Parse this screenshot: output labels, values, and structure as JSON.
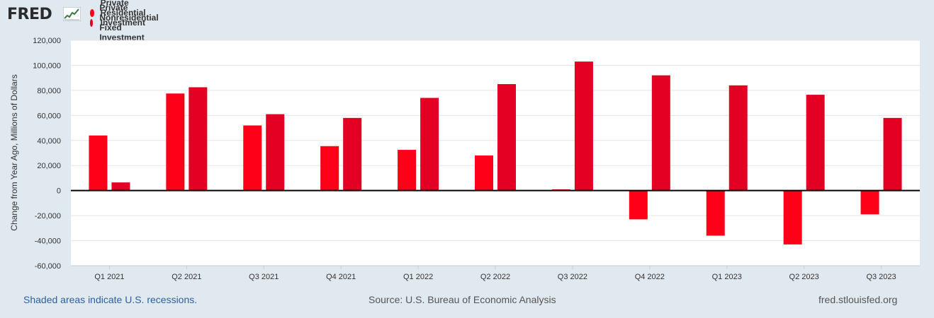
{
  "header": {
    "logo_text": "FRED",
    "logo_icon": "trend-line-icon",
    "legend": [
      {
        "label": "Private Residential Investment",
        "color": "#ff0019"
      },
      {
        "label": "Private Nonresidential Fixed Investment",
        "color": "#e30022"
      }
    ]
  },
  "footer": {
    "recessions_note": "Shaded areas indicate U.S. recessions.",
    "source": "Source: U.S. Bureau of Economic Analysis",
    "site": "fred.stlouisfed.org"
  },
  "colors": {
    "background": "#e1e9f0",
    "plot_background": "#ffffff",
    "gridline": "#e6e6e6",
    "zero_line": "#000000",
    "series_residential": "#ff0019",
    "series_nonresidential": "#e30022"
  },
  "chart_data": {
    "type": "bar",
    "title": "",
    "xlabel": "",
    "ylabel": "Change from Year Ago, Millions of Dollars",
    "ylim": [
      -60000,
      120000
    ],
    "yticks": [
      -60000,
      -40000,
      -20000,
      0,
      20000,
      40000,
      60000,
      80000,
      100000,
      120000
    ],
    "ytick_labels": [
      "-60,000",
      "-40,000",
      "-20,000",
      "0",
      "20,000",
      "40,000",
      "60,000",
      "80,000",
      "100,000",
      "120,000"
    ],
    "grid": true,
    "legend_position": "top-left",
    "categories": [
      "Q1 2021",
      "Q2 2021",
      "Q3 2021",
      "Q4 2021",
      "Q1 2022",
      "Q2 2022",
      "Q3 2022",
      "Q4 2022",
      "Q1 2023",
      "Q2 2023",
      "Q3 2023"
    ],
    "series": [
      {
        "name": "Private Residential Investment",
        "values": [
          44000,
          77500,
          52000,
          35500,
          32500,
          28000,
          1000,
          -23000,
          -36000,
          -43000,
          -19000
        ]
      },
      {
        "name": "Private Nonresidential Fixed Investment",
        "values": [
          6500,
          82500,
          61000,
          58000,
          74000,
          85000,
          103000,
          92000,
          84000,
          76500,
          58000
        ]
      }
    ]
  }
}
